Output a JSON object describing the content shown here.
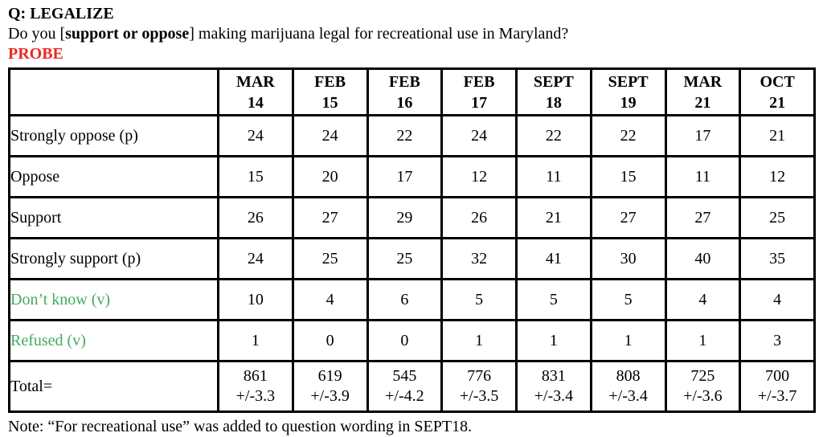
{
  "header": {
    "title": "Q: LEGALIZE",
    "question": {
      "pre": "Do you [",
      "emphasis": "support or oppose",
      "post": "] making marijuana legal for recreational use in Maryland?"
    },
    "probe": "PROBE"
  },
  "colors": {
    "probe_red": "#ee2722",
    "volunteer_green": "#41ab5d",
    "border": "#000000"
  },
  "table": {
    "columns": [
      "MAR\n14",
      "FEB\n15",
      "FEB\n16",
      "FEB\n17",
      "SEPT\n18",
      "SEPT\n19",
      "MAR\n21",
      "OCT\n21"
    ],
    "rows": [
      {
        "label": "Strongly oppose (p)",
        "green": false,
        "values": [
          "24",
          "24",
          "22",
          "24",
          "22",
          "22",
          "17",
          "21"
        ]
      },
      {
        "label": "Oppose",
        "green": false,
        "values": [
          "15",
          "20",
          "17",
          "12",
          "11",
          "15",
          "11",
          "12"
        ]
      },
      {
        "label": "Support",
        "green": false,
        "values": [
          "26",
          "27",
          "29",
          "26",
          "21",
          "27",
          "27",
          "25"
        ]
      },
      {
        "label": "Strongly support (p)",
        "green": false,
        "values": [
          "24",
          "25",
          "25",
          "32",
          "41",
          "30",
          "40",
          "35"
        ]
      },
      {
        "label": "Don’t know (v)",
        "green": true,
        "values": [
          "10",
          "4",
          "6",
          "5",
          "5",
          "5",
          "4",
          "4"
        ]
      },
      {
        "label": "Refused (v)",
        "green": true,
        "values": [
          "1",
          "0",
          "0",
          "1",
          "1",
          "1",
          "1",
          "3"
        ]
      }
    ],
    "total_row": {
      "label": "Total=",
      "values": [
        "861\n+/-3.3",
        "619\n+/-3.9",
        "545\n+/-4.2",
        "776\n+/-3.5",
        "831\n+/-3.4",
        "808\n+/-3.4",
        "725\n+/-3.6",
        "700\n+/-3.7"
      ]
    }
  },
  "note": "Note: “For recreational use” was added to question wording in SEPT18."
}
